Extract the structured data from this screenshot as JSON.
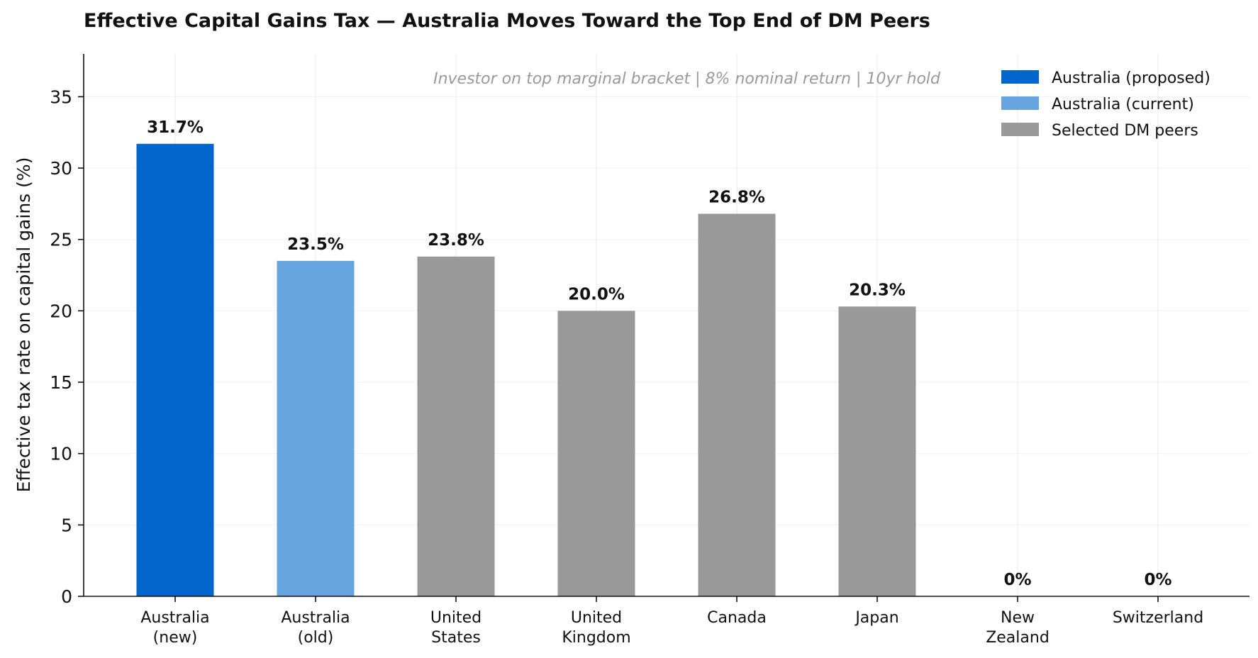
{
  "title": "Effective Capital Gains Tax — Australia Moves Toward the Top End of DM Peers",
  "colors": {
    "proposed": "#0366cc",
    "current": "#67a5e0",
    "peers": "#999999",
    "grid": "#ececec",
    "axis": "#111111"
  },
  "chart_data": {
    "type": "bar",
    "title": "Effective Capital Gains Tax — Australia Moves Toward the Top End of DM Peers",
    "subtitle": "Investor on top marginal bracket | 8% nominal return | 10yr hold",
    "xlabel": "",
    "ylabel": "Effective tax rate on capital gains (%)",
    "ylim": [
      0,
      38
    ],
    "yticks": [
      0,
      5,
      10,
      15,
      20,
      25,
      30,
      35
    ],
    "grid": true,
    "legend_position": "top-right",
    "categories": [
      [
        "Australia",
        "(new)"
      ],
      [
        "Australia",
        "(old)"
      ],
      [
        "United",
        "States"
      ],
      [
        "United",
        "Kingdom"
      ],
      [
        "Canada"
      ],
      [
        "Japan"
      ],
      [
        "New",
        "Zealand"
      ],
      [
        "Switzerland"
      ]
    ],
    "values": [
      31.7,
      23.5,
      23.8,
      20.0,
      26.8,
      20.3,
      0,
      0
    ],
    "value_labels": [
      "31.7%",
      "23.5%",
      "23.8%",
      "20.0%",
      "26.8%",
      "20.3%",
      "0%",
      "0%"
    ],
    "groups": [
      "proposed",
      "current",
      "peers",
      "peers",
      "peers",
      "peers",
      "peers",
      "peers"
    ],
    "legend": [
      {
        "key": "proposed",
        "label": "Australia (proposed)"
      },
      {
        "key": "current",
        "label": "Australia (current)"
      },
      {
        "key": "peers",
        "label": "Selected DM peers"
      }
    ]
  }
}
